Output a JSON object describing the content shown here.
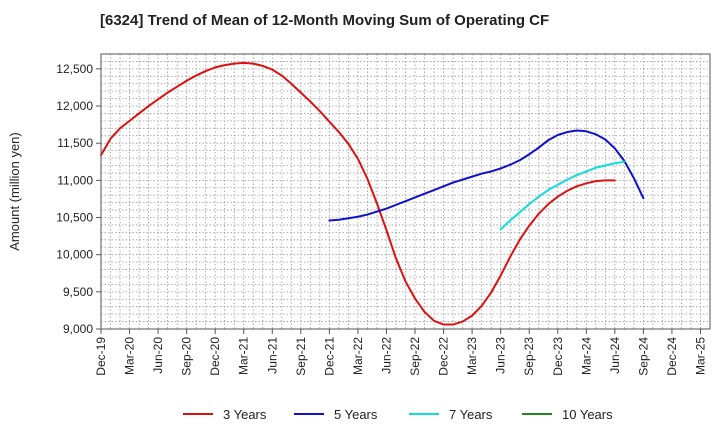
{
  "chart_data": {
    "type": "line",
    "title": "[6324]  Trend of Mean of 12-Month Moving Sum of Operating CF",
    "ylabel": "Amount (million yen)",
    "xlabel": "",
    "ylim": [
      9000,
      12700
    ],
    "yticks": [
      9000,
      9500,
      10000,
      10500,
      11000,
      11500,
      12000,
      12500
    ],
    "ytick_labels": [
      "9,000",
      "9,500",
      "10,000",
      "10,500",
      "11,000",
      "11,500",
      "12,000",
      "12,500"
    ],
    "x_start": "Dec-19",
    "x_month_count": 64,
    "xtick_labels": [
      "Dec-19",
      "Mar-20",
      "Jun-20",
      "Sep-20",
      "Dec-20",
      "Mar-21",
      "Jun-21",
      "Sep-21",
      "Dec-21",
      "Mar-22",
      "Jun-22",
      "Sep-22",
      "Dec-22",
      "Mar-23",
      "Jun-23",
      "Sep-23",
      "Dec-23",
      "Mar-24",
      "Jun-24",
      "Sep-24",
      "Dec-24",
      "Mar-25"
    ],
    "grid": true,
    "legend_position": "bottom",
    "series": [
      {
        "name": "3 Years",
        "color": "#dd1111",
        "start_index": 0,
        "values": [
          11340,
          11560,
          11700,
          11800,
          11900,
          12000,
          12090,
          12180,
          12260,
          12340,
          12410,
          12470,
          12520,
          12550,
          12570,
          12580,
          12570,
          12540,
          12490,
          12410,
          12300,
          12180,
          12060,
          11930,
          11790,
          11650,
          11490,
          11290,
          11020,
          10690,
          10330,
          9950,
          9640,
          9410,
          9230,
          9110,
          9060,
          9060,
          9100,
          9180,
          9310,
          9490,
          9720,
          9970,
          10200,
          10390,
          10550,
          10680,
          10780,
          10860,
          10920,
          10960,
          10990,
          11000,
          11000
        ]
      },
      {
        "name": "5 Years",
        "color": "#1111cc",
        "start_index": 24,
        "values": [
          10460,
          10470,
          10490,
          10510,
          10540,
          10580,
          10620,
          10670,
          10720,
          10770,
          10820,
          10870,
          10920,
          10970,
          11010,
          11050,
          11090,
          11120,
          11160,
          11210,
          11270,
          11350,
          11440,
          11540,
          11610,
          11650,
          11670,
          11660,
          11620,
          11550,
          11430,
          11260,
          11030,
          10760
        ]
      },
      {
        "name": "7 Years",
        "color": "#11dddd",
        "start_index": 42,
        "values": [
          10340,
          10460,
          10570,
          10680,
          10780,
          10870,
          10940,
          11010,
          11070,
          11120,
          11170,
          11200,
          11230,
          11250
        ]
      },
      {
        "name": "10 Years",
        "color": "#228822",
        "start_index": 0,
        "values": []
      }
    ]
  }
}
